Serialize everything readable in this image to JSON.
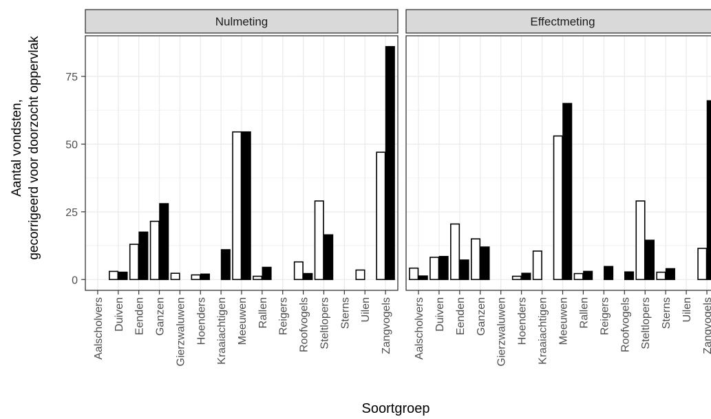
{
  "chart_data": {
    "type": "bar",
    "xlabel": "Soortgroep",
    "ylabel_lines": [
      "Aantal vondsten,",
      "gecorrigeerd voor doorzocht oppervlak"
    ],
    "y_ticks": [
      0,
      25,
      50,
      75
    ],
    "ylim": [
      -4,
      90
    ],
    "grid": true,
    "series": [
      {
        "key": "s1",
        "fill": "#ffffff",
        "stroke": "#000000"
      },
      {
        "key": "s2",
        "fill": "#000000",
        "stroke": "#000000"
      }
    ],
    "panels": [
      {
        "title": "Nulmeting",
        "categories": [
          "Aalscholvers",
          "Duiven",
          "Eenden",
          "Ganzen",
          "Gierzwaluwen",
          "Hoenders",
          "Kraaiachtigen",
          "Meeuwen",
          "Rallen",
          "Reigers",
          "Roofvogels",
          "Steltlopers",
          "Sterns",
          "Uilen",
          "Zangvogels"
        ],
        "values": {
          "s1": [
            0,
            3,
            13,
            21.5,
            2.3,
            1.7,
            0,
            54.5,
            1.2,
            0,
            6.5,
            29,
            0,
            3.5,
            47
          ],
          "s2": [
            0,
            2.7,
            17.5,
            28,
            0,
            2,
            11,
            54.5,
            4.5,
            0,
            2.2,
            16.5,
            0,
            0,
            86
          ]
        }
      },
      {
        "title": "Effectmeting",
        "categories": [
          "Aalscholvers",
          "Duiven",
          "Eenden",
          "Ganzen",
          "Gierzwaluwen",
          "Hoenders",
          "Kraaiachtigen",
          "Meeuwen",
          "Rallen",
          "Reigers",
          "Roofvogels",
          "Steltlopers",
          "Sterns",
          "Uilen",
          "Zangvogels"
        ],
        "values": {
          "s1": [
            4.2,
            8.2,
            20.5,
            15,
            0,
            1.2,
            10.5,
            53,
            2.2,
            0,
            0,
            29,
            2.7,
            0,
            11.5
          ],
          "s2": [
            1.3,
            8.5,
            7.2,
            12,
            0,
            2.3,
            0,
            65,
            3,
            4.8,
            2.8,
            14.5,
            4,
            0,
            66
          ]
        }
      }
    ]
  }
}
